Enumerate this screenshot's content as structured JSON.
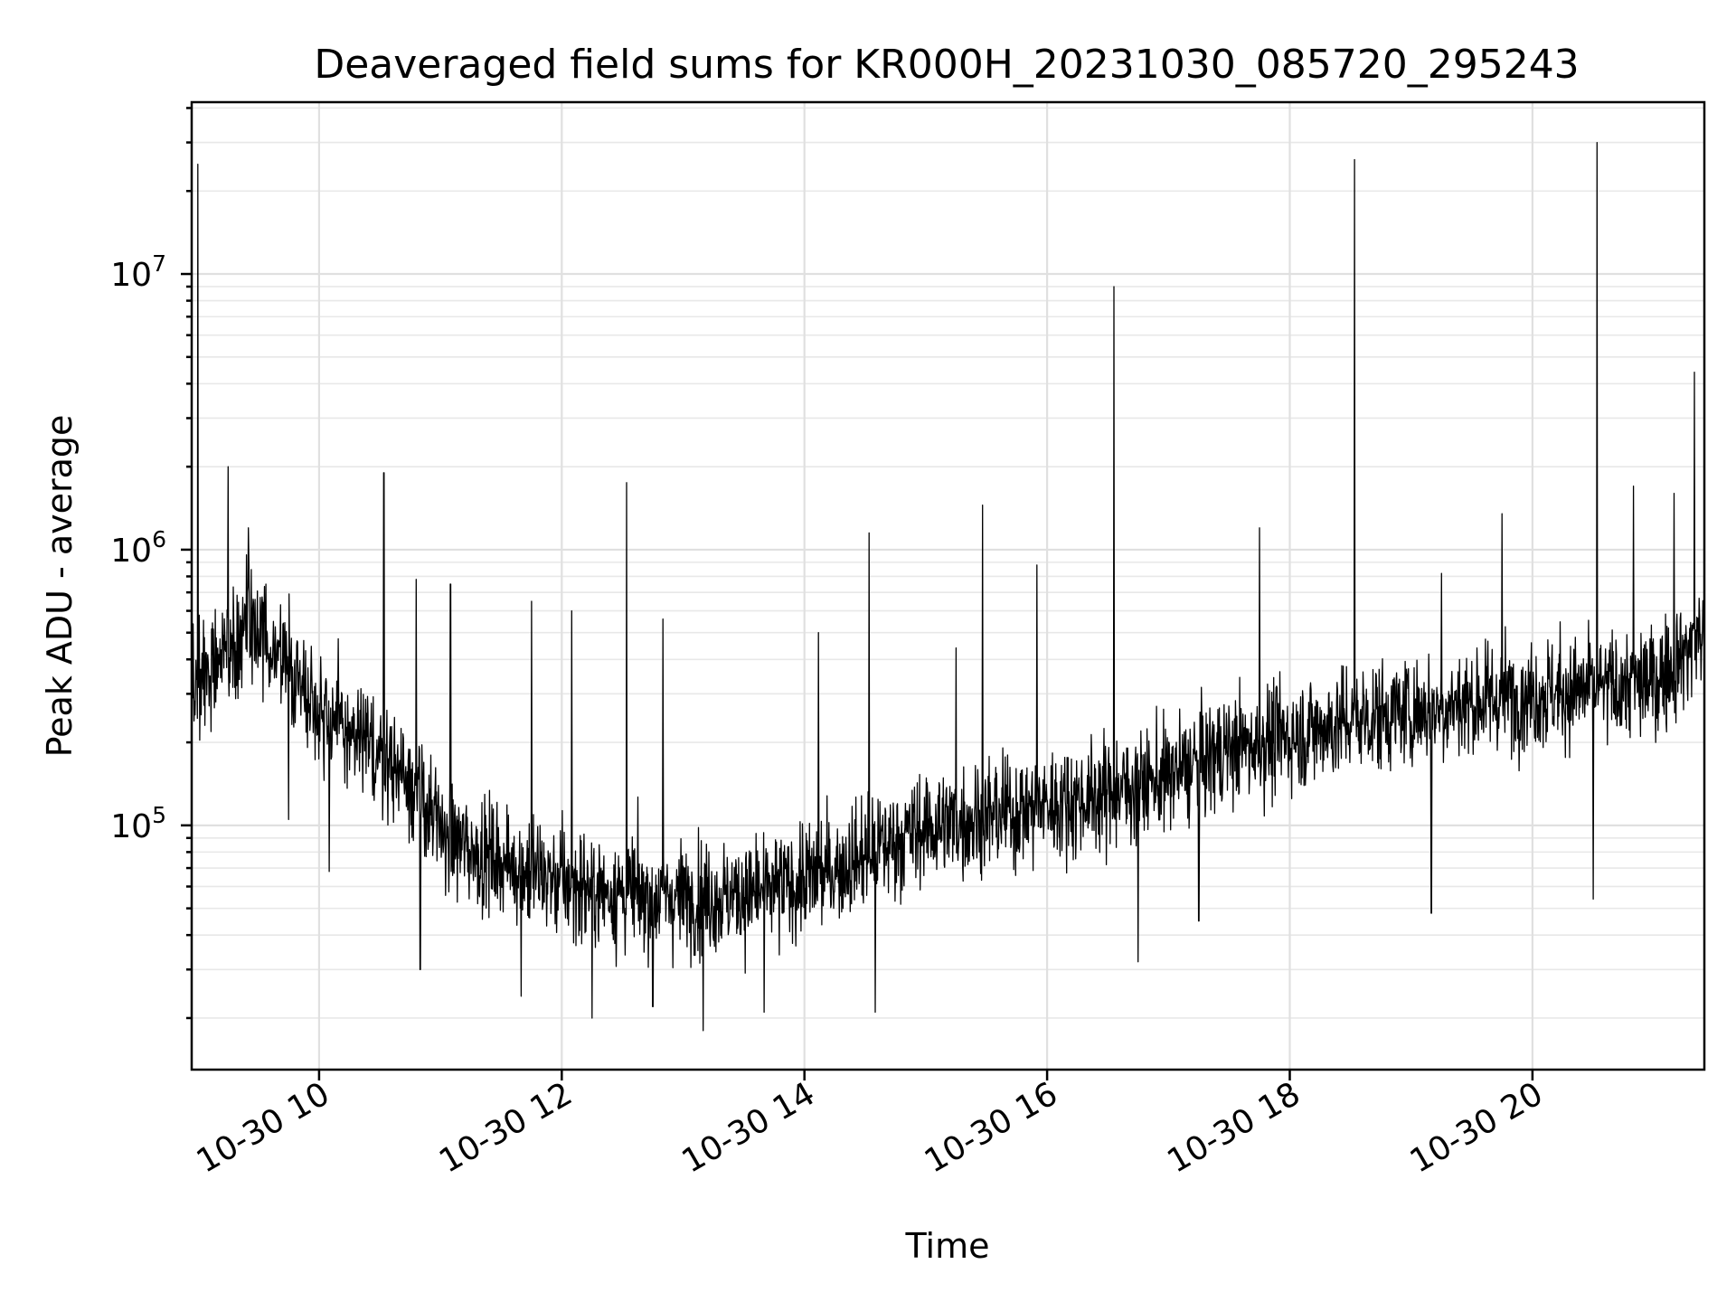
{
  "chart_data": {
    "type": "line",
    "title": "Deaveraged field sums for KR000H_20231030_085720_295243",
    "xlabel": "Time",
    "ylabel": "Peak ADU - average",
    "y_scale": "log",
    "xlim": [
      "2023-10-30 08:57",
      "2023-10-30 21:25"
    ],
    "ylim": [
      13000,
      42000000
    ],
    "x_ticks": [
      "2023-10-30 10:00",
      "2023-10-30 12:00",
      "2023-10-30 14:00",
      "2023-10-30 16:00",
      "2023-10-30 18:00",
      "2023-10-30 20:00"
    ],
    "x_tick_labels": [
      "10-30 10",
      "10-30 12",
      "10-30 14",
      "10-30 16",
      "10-30 18",
      "10-30 20"
    ],
    "y_ticks": [
      {
        "value": 100000,
        "base": "10",
        "exp": "5"
      },
      {
        "value": 1000000,
        "base": "10",
        "exp": "6"
      },
      {
        "value": 10000000,
        "base": "10",
        "exp": "7"
      }
    ],
    "grid": true,
    "color": "#000000",
    "series": [
      {
        "points": [
          [
            "2023-10-30 08:57",
            300000
          ],
          [
            "2023-10-30 09:05",
            380000
          ],
          [
            "2023-10-30 09:15",
            450000
          ],
          [
            "2023-10-30 09:25",
            500000
          ],
          [
            "2023-10-30 09:35",
            480000
          ],
          [
            "2023-10-30 09:45",
            380000
          ],
          [
            "2023-10-30 10:00",
            270000
          ],
          [
            "2023-10-30 10:15",
            210000
          ],
          [
            "2023-10-30 10:30",
            180000
          ],
          [
            "2023-10-30 10:45",
            150000
          ],
          [
            "2023-10-30 11:00",
            95000
          ],
          [
            "2023-10-30 11:15",
            82000
          ],
          [
            "2023-10-30 11:30",
            75000
          ],
          [
            "2023-10-30 11:45",
            68000
          ],
          [
            "2023-10-30 12:00",
            62000
          ],
          [
            "2023-10-30 12:20",
            58000
          ],
          [
            "2023-10-30 12:40",
            56000
          ],
          [
            "2023-10-30 13:00",
            55000
          ],
          [
            "2023-10-30 13:20",
            55000
          ],
          [
            "2023-10-30 13:40",
            57000
          ],
          [
            "2023-10-30 14:00",
            63000
          ],
          [
            "2023-10-30 14:20",
            72000
          ],
          [
            "2023-10-30 14:40",
            85000
          ],
          [
            "2023-10-30 15:00",
            98000
          ],
          [
            "2023-10-30 15:30",
            108000
          ],
          [
            "2023-10-30 16:00",
            118000
          ],
          [
            "2023-10-30 16:30",
            130000
          ],
          [
            "2023-10-30 17:00",
            150000
          ],
          [
            "2023-10-30 17:30",
            190000
          ],
          [
            "2023-10-30 18:00",
            210000
          ],
          [
            "2023-10-30 18:30",
            240000
          ],
          [
            "2023-10-30 19:00",
            260000
          ],
          [
            "2023-10-30 19:30",
            280000
          ],
          [
            "2023-10-30 20:00",
            300000
          ],
          [
            "2023-10-30 20:30",
            310000
          ],
          [
            "2023-10-30 21:00",
            330000
          ],
          [
            "2023-10-30 21:15",
            420000
          ],
          [
            "2023-10-30 21:25",
            520000
          ]
        ],
        "spikes": [
          [
            "2023-10-30 09:00",
            25000000
          ],
          [
            "2023-10-30 09:15",
            2000000
          ],
          [
            "2023-10-30 09:25",
            1200000
          ],
          [
            "2023-10-30 10:32",
            1900000
          ],
          [
            "2023-10-30 10:48",
            780000
          ],
          [
            "2023-10-30 11:05",
            750000
          ],
          [
            "2023-10-30 11:45",
            650000
          ],
          [
            "2023-10-30 12:05",
            600000
          ],
          [
            "2023-10-30 12:32",
            1750000
          ],
          [
            "2023-10-30 12:50",
            560000
          ],
          [
            "2023-10-30 14:07",
            500000
          ],
          [
            "2023-10-30 14:32",
            1150000
          ],
          [
            "2023-10-30 15:15",
            440000
          ],
          [
            "2023-10-30 15:28",
            1450000
          ],
          [
            "2023-10-30 15:55",
            880000
          ],
          [
            "2023-10-30 16:33",
            9000000
          ],
          [
            "2023-10-30 17:45",
            1200000
          ],
          [
            "2023-10-30 18:32",
            26000000
          ],
          [
            "2023-10-30 19:15",
            820000
          ],
          [
            "2023-10-30 19:45",
            1350000
          ],
          [
            "2023-10-30 20:32",
            30000000
          ],
          [
            "2023-10-30 20:50",
            1700000
          ],
          [
            "2023-10-30 21:10",
            1600000
          ],
          [
            "2023-10-30 21:20",
            4400000
          ]
        ],
        "dips": [
          [
            "2023-10-30 09:45",
            105000
          ],
          [
            "2023-10-30 10:05",
            68000
          ],
          [
            "2023-10-30 10:50",
            30000
          ],
          [
            "2023-10-30 11:40",
            24000
          ],
          [
            "2023-10-30 12:15",
            20000
          ],
          [
            "2023-10-30 12:45",
            22000
          ],
          [
            "2023-10-30 13:10",
            18000
          ],
          [
            "2023-10-30 13:40",
            21000
          ],
          [
            "2023-10-30 14:35",
            21000
          ],
          [
            "2023-10-30 16:45",
            32000
          ],
          [
            "2023-10-30 17:15",
            45000
          ],
          [
            "2023-10-30 19:10",
            48000
          ],
          [
            "2023-10-30 20:30",
            54000
          ]
        ]
      }
    ]
  }
}
